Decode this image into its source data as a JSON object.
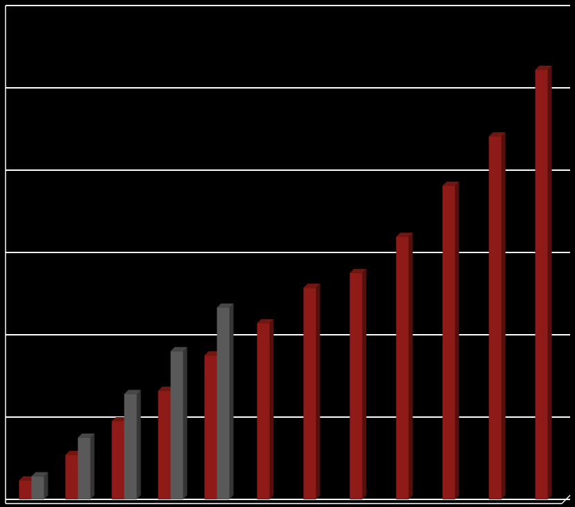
{
  "chart_data": {
    "type": "bar",
    "categories": [
      null,
      null,
      null,
      null,
      null,
      null,
      null,
      null,
      null,
      null,
      null,
      null
    ],
    "series": [
      {
        "color": "#8e1b17",
        "values": [
          0.23,
          0.54,
          0.95,
          1.32,
          1.75,
          2.14,
          2.57,
          2.75,
          3.19,
          3.81,
          4.41,
          5.22
        ]
      },
      {
        "color": "#595959",
        "values": [
          0.28,
          0.75,
          1.28,
          1.8,
          2.33,
          null,
          null,
          null,
          null,
          null,
          null,
          null
        ]
      }
    ],
    "ylim": [
      0,
      6
    ],
    "yticks": [
      0,
      1,
      2,
      3,
      4,
      5,
      6
    ],
    "grid": true,
    "background": "#000000",
    "grid_color": "#ffffff"
  }
}
